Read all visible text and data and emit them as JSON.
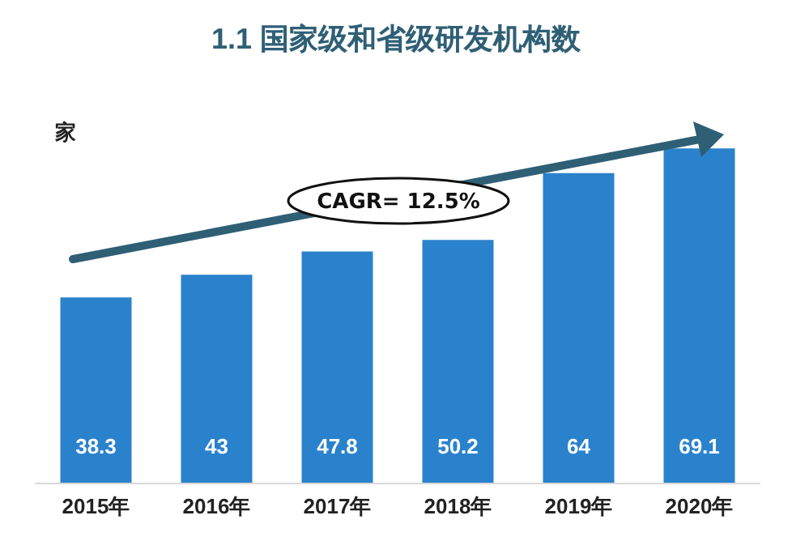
{
  "chart_data": {
    "type": "bar",
    "title": "1.1 国家级和省级研发机构数",
    "ylabel": "家",
    "categories": [
      "2015年",
      "2016年",
      "2017年",
      "2018年",
      "2019年",
      "2020年"
    ],
    "values": [
      38.3,
      43,
      47.8,
      50.2,
      64,
      69.1
    ],
    "color": "#2a82cc",
    "data_labels": true,
    "annotations": [
      "CAGR= 12.5%"
    ]
  }
}
